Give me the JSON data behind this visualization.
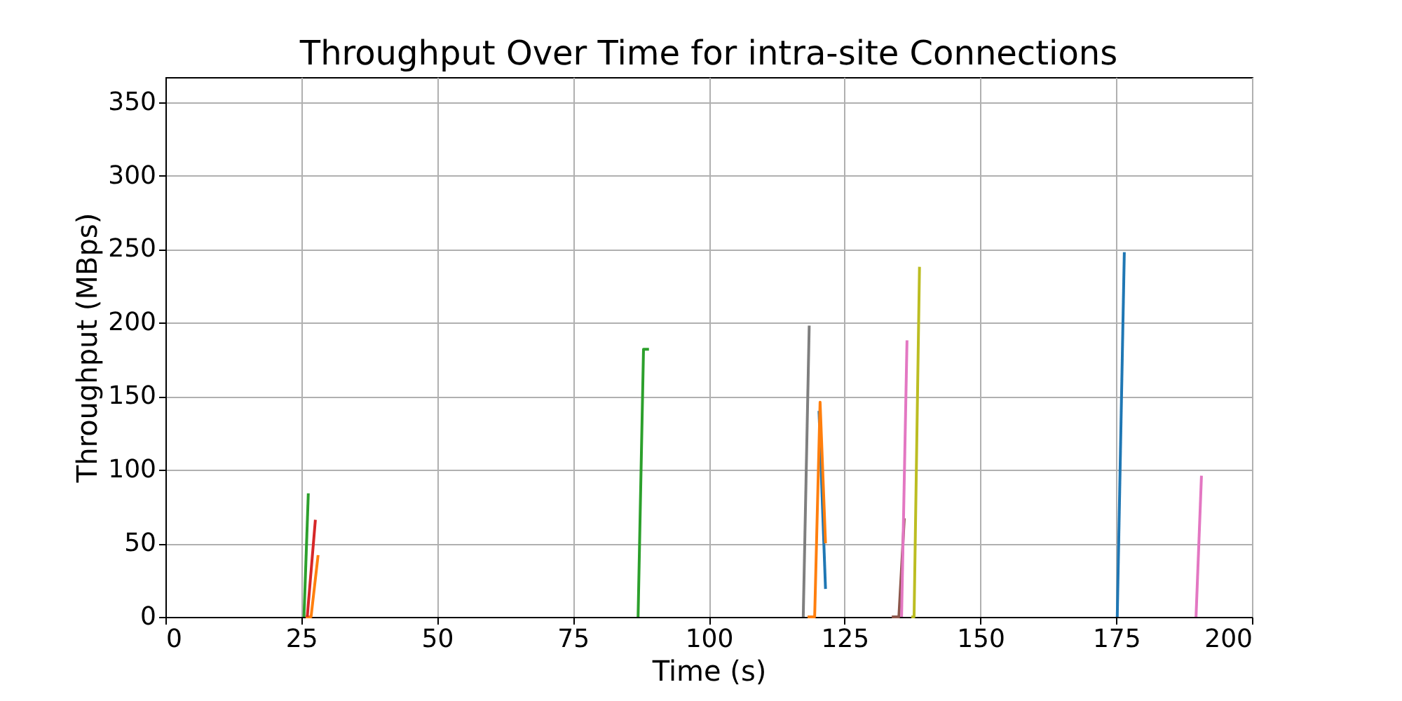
{
  "chart_data": {
    "type": "line",
    "title": "Throughput Over Time for intra-site Connections",
    "xlabel": "Time (s)",
    "ylabel": "Throughput (MBps)",
    "xlim": [
      0,
      200
    ],
    "xticks": [
      0,
      25,
      50,
      75,
      100,
      125,
      150,
      175,
      200
    ],
    "ylim": [
      0,
      367
    ],
    "yticks": [
      0,
      50,
      100,
      150,
      200,
      250,
      300,
      350
    ],
    "grid": true,
    "series": [
      {
        "color": "#2ca02c",
        "x": [
          25.5,
          26.3
        ],
        "values": [
          0,
          84
        ]
      },
      {
        "color": "#ff7f0e",
        "x": [
          25.8,
          26.8,
          28.1
        ],
        "values": [
          0,
          0,
          42
        ]
      },
      {
        "color": "#d62728",
        "x": [
          26.1,
          27.6
        ],
        "values": [
          0,
          66
        ]
      },
      {
        "color": "#2ca02c",
        "x": [
          87.0,
          88.0,
          89.0
        ],
        "values": [
          0,
          182,
          182
        ]
      },
      {
        "color": "#7f7f7f",
        "x": [
          117.4,
          118.5
        ],
        "values": [
          0,
          198
        ]
      },
      {
        "color": "#1f77b4",
        "x": [
          120.3,
          121.5
        ],
        "values": [
          140,
          19
        ]
      },
      {
        "color": "#ff7f0e",
        "x": [
          118.2,
          119.5,
          120.5,
          121.5
        ],
        "values": [
          0,
          0,
          146,
          50
        ]
      },
      {
        "color": "#8c564b",
        "x": [
          133.7,
          135.0,
          136.0
        ],
        "values": [
          0,
          0,
          67
        ]
      },
      {
        "color": "#e377c2",
        "x": [
          135.5,
          136.5
        ],
        "values": [
          0,
          188
        ]
      },
      {
        "color": "#bcbd22",
        "x": [
          137.3,
          137.8,
          138.8
        ],
        "values": [
          0,
          0,
          238
        ]
      },
      {
        "color": "#1f77b4",
        "x": [
          175.2,
          176.5
        ],
        "values": [
          0,
          248
        ]
      },
      {
        "color": "#e377c2",
        "x": [
          189.7,
          190.7
        ],
        "values": [
          0,
          96
        ]
      }
    ]
  }
}
